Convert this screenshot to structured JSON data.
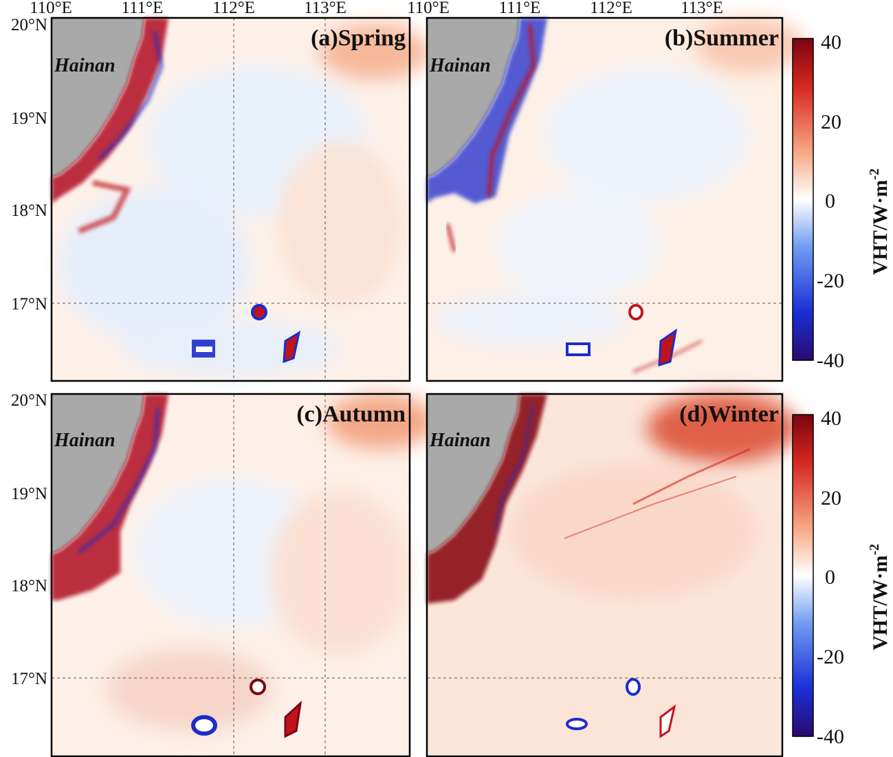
{
  "figure": {
    "x_ticks": [
      "110°E",
      "111°E",
      "112°E",
      "113°E"
    ],
    "y_ticks": [
      "20°N",
      "19°N",
      "18°N",
      "17°N"
    ],
    "panels": [
      {
        "id": "a",
        "title": "(a)Spring",
        "island_label": "Hainan"
      },
      {
        "id": "b",
        "title": "(b)Summer",
        "island_label": "Hainan"
      },
      {
        "id": "c",
        "title": "(c)Autumn",
        "island_label": "Hainan"
      },
      {
        "id": "d",
        "title": "(d)Winter",
        "island_label": "Hainan"
      }
    ],
    "colorbar": {
      "label": "VHT/W·m",
      "label_exponent": "-2",
      "ticks": [
        "40",
        "20",
        "0",
        "-20",
        "-40"
      ],
      "range": [
        -40,
        40
      ],
      "colors": [
        "#2a0a6e",
        "#1a2fd6",
        "#6f9bf2",
        "#ffffff",
        "#f7a582",
        "#d6281e",
        "#7a0410"
      ]
    },
    "colors": {
      "land": "#a9a9a9",
      "positive": "#c0141c",
      "negative": "#1c2ccc",
      "background_tint": "#fbe7dc"
    }
  }
}
